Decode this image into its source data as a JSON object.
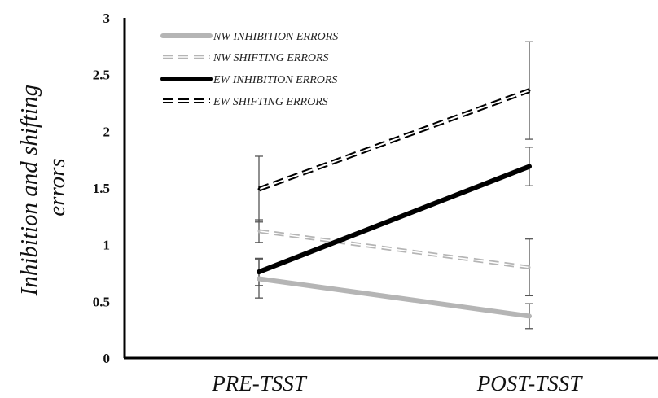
{
  "chart_data": {
    "type": "line",
    "categories": [
      "PRE-TSST",
      "POST-TSST"
    ],
    "ylabel_lines": [
      "Inhibition and shifting",
      "errors"
    ],
    "xlabel": "",
    "ylim": [
      0,
      3
    ],
    "yticks": [
      "0",
      "0.5",
      "1",
      "1.5",
      "2",
      "2.5",
      "3"
    ],
    "legend_position": "top-left",
    "grid": false,
    "series": [
      {
        "name": "NW INHIBITION ERRORS",
        "values": [
          0.7,
          0.37
        ],
        "errors": [
          0.17,
          0.11
        ],
        "color": "#b5b5b5",
        "style": "solid-gray"
      },
      {
        "name": "NW SHIFTING ERRORS",
        "values": [
          1.12,
          0.8
        ],
        "errors": [
          0.1,
          0.25
        ],
        "color": "#b5b5b5",
        "style": "dashed-gray"
      },
      {
        "name": "EW INHIBITION ERRORS",
        "values": [
          0.76,
          1.69
        ],
        "errors": [
          0.12,
          0.17
        ],
        "color": "#000000",
        "style": "solid-black"
      },
      {
        "name": "EW SHIFTING ERRORS",
        "values": [
          1.49,
          2.36
        ],
        "errors": [
          0.29,
          0.43
        ],
        "color": "#000000",
        "style": "dashed-black"
      }
    ]
  }
}
